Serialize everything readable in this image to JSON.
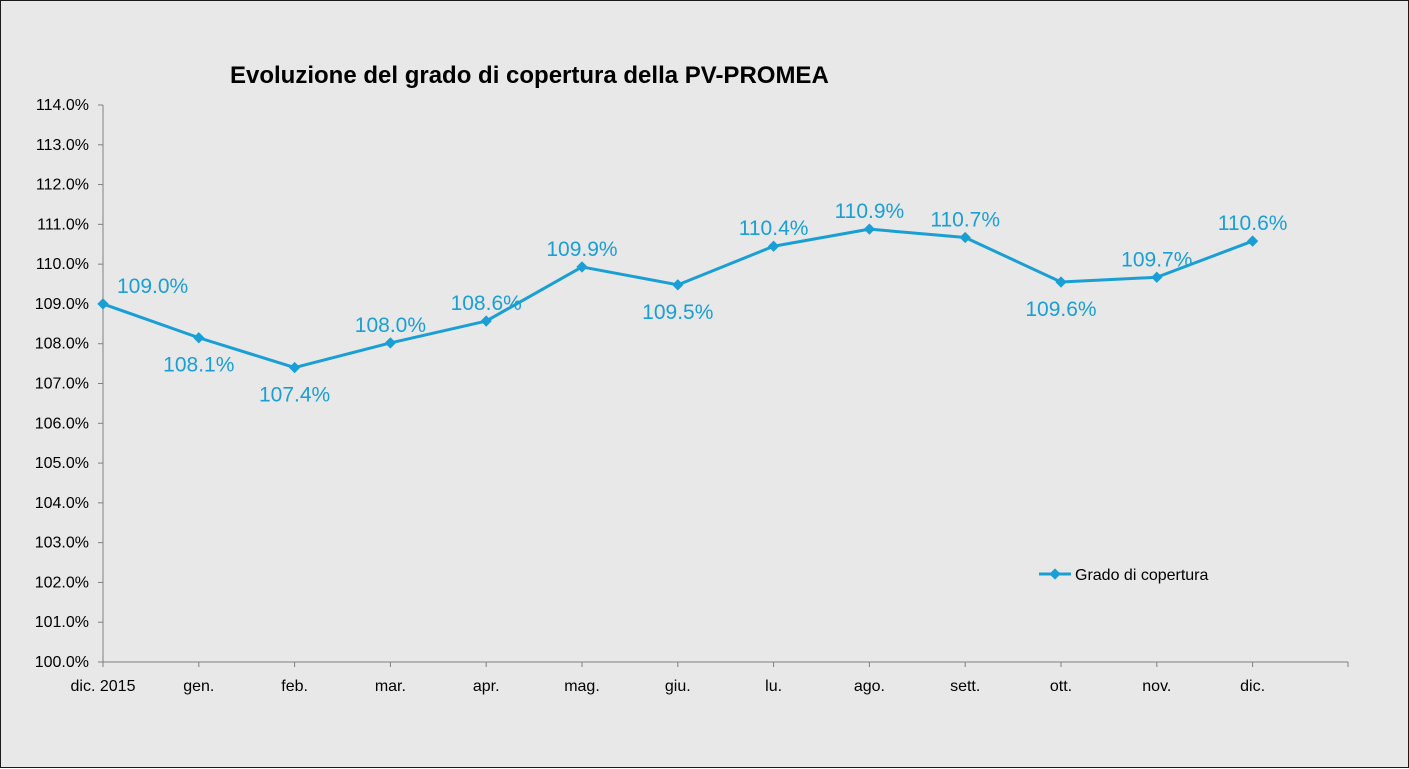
{
  "chart_data": {
    "type": "line",
    "title": "Evoluzione del grado di copertura della PV-PROMEA",
    "xlabel": "",
    "ylabel": "",
    "categories": [
      "dic. 2015",
      "gen.",
      "feb.",
      "mar.",
      "apr.",
      "mag.",
      "giu.",
      "lu.",
      "ago.",
      "sett.",
      "ott.",
      "nov.",
      "dic."
    ],
    "series": [
      {
        "name": "Grado di copertura",
        "values": [
          109.0,
          108.15,
          107.4,
          108.02,
          108.57,
          109.93,
          109.48,
          110.45,
          110.88,
          110.67,
          109.55,
          109.67,
          110.58
        ],
        "data_labels": [
          "109.0%",
          "108.1%",
          "107.4%",
          "108.0%",
          "108.6%",
          "109.9%",
          "109.5%",
          "110.4%",
          "110.9%",
          "110.7%",
          "109.6%",
          "109.7%",
          "110.6%"
        ],
        "label_position": [
          "above",
          "below",
          "below",
          "above",
          "above",
          "above",
          "below",
          "above",
          "above",
          "above",
          "below",
          "above",
          "above"
        ]
      }
    ],
    "yticks": [
      "100.0%",
      "101.0%",
      "102.0%",
      "103.0%",
      "104.0%",
      "105.0%",
      "106.0%",
      "107.0%",
      "108.0%",
      "109.0%",
      "110.0%",
      "111.0%",
      "112.0%",
      "113.0%",
      "114.0%"
    ],
    "ylim": [
      100,
      114
    ],
    "grid": false,
    "legend_position": "right",
    "colors": {
      "series": "#1a9fd5",
      "background": "#e8e8e8",
      "axis": "#7f7f7f"
    }
  }
}
